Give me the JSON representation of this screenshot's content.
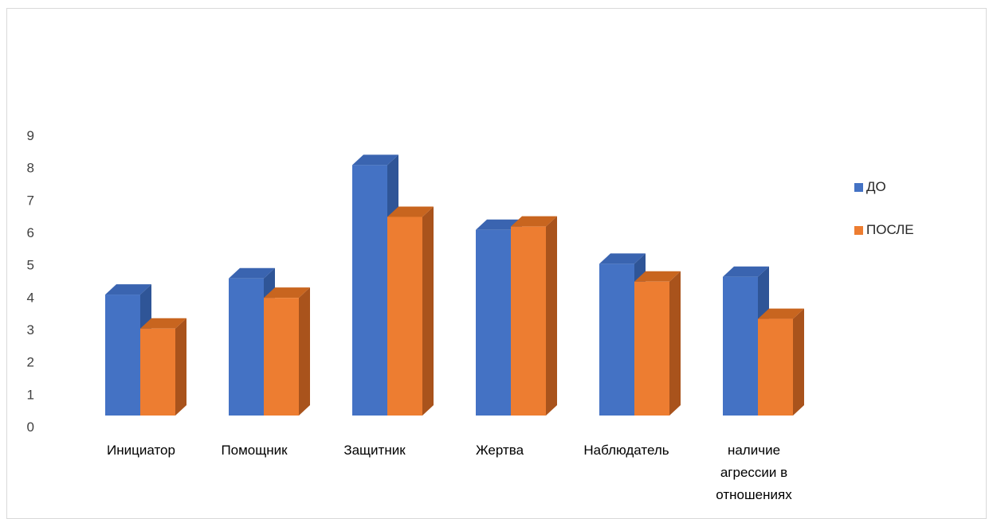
{
  "chart_data": {
    "type": "bar",
    "style": "3d-clustered-column",
    "categories": [
      "Инициатор",
      "Помощник",
      "Защитник",
      "Жертва",
      "Наблюдатель",
      "наличие агрессии в отношениях"
    ],
    "category_lines": [
      [
        "Инициатор"
      ],
      [
        "Помощник"
      ],
      [
        "Защитник"
      ],
      [
        "Жертва"
      ],
      [
        "Наблюдатель"
      ],
      [
        "наличие",
        "агрессии в",
        "отношениях"
      ]
    ],
    "series": [
      {
        "name": "ДО",
        "values": [
          4.4,
          4.9,
          8.4,
          6.4,
          5.35,
          4.95
        ],
        "color": "#4472c4",
        "side_color": "#2f5597",
        "top_color": "#3a64b0"
      },
      {
        "name": "ПОСЛЕ",
        "values": [
          3.35,
          4.3,
          6.8,
          6.5,
          4.8,
          3.65
        ],
        "color": "#ed7d31",
        "side_color": "#a9531c",
        "top_color": "#c8651f"
      }
    ],
    "y_ticks": [
      "0",
      "1",
      "2",
      "3",
      "4",
      "5",
      "6",
      "7",
      "8",
      "9"
    ],
    "ylim": [
      0,
      9
    ],
    "grid": false,
    "legend_position": "right"
  }
}
